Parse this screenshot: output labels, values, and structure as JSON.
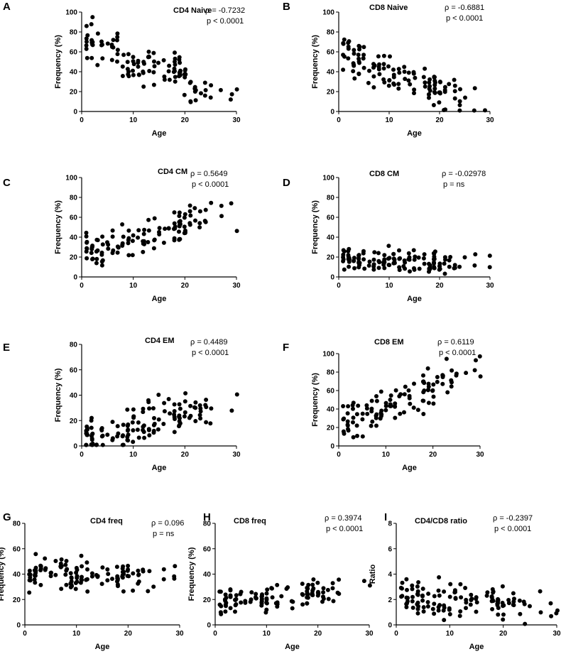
{
  "chart_data": [
    {
      "type": "scatter",
      "panel": "A",
      "title": "CD4 Naive",
      "xlabel": "Age",
      "ylabel": "Frequency (%)",
      "xlim": [
        0,
        30
      ],
      "ylim": [
        0,
        100
      ],
      "xticks": [
        "0",
        "10",
        "20",
        "30"
      ],
      "yticks": [
        "0",
        "20",
        "40",
        "60",
        "80",
        "100"
      ],
      "rho": "ρ = -0.7232",
      "p": "p < 0.0001",
      "trend": {
        "a": 72,
        "b": -2.0,
        "spread": 14
      }
    },
    {
      "type": "scatter",
      "panel": "B",
      "title": "CD8 Naive",
      "xlabel": "Age",
      "ylabel": "Frequency (%)",
      "xlim": [
        0,
        30
      ],
      "ylim": [
        0,
        100
      ],
      "xticks": [
        "0",
        "10",
        "20",
        "30"
      ],
      "yticks": [
        "0",
        "20",
        "40",
        "60",
        "80",
        "100"
      ],
      "rho": "ρ = -0.6881",
      "p": "p < 0.0001",
      "trend": {
        "a": 60,
        "b": -2.0,
        "spread": 14
      }
    },
    {
      "type": "scatter",
      "panel": "C",
      "title": "CD4 CM",
      "xlabel": "Age",
      "ylabel": "Frequency (%)",
      "xlim": [
        0,
        30
      ],
      "ylim": [
        0,
        100
      ],
      "xticks": [
        "0",
        "10",
        "20",
        "30"
      ],
      "yticks": [
        "0",
        "20",
        "40",
        "60",
        "80",
        "100"
      ],
      "rho": "ρ = 0.5649",
      "p": "p < 0.0001",
      "trend": {
        "a": 22,
        "b": 1.5,
        "spread": 12
      }
    },
    {
      "type": "scatter",
      "panel": "D",
      "title": "CD8 CM",
      "xlabel": "Age",
      "ylabel": "Frequency (%)",
      "xlim": [
        0,
        30
      ],
      "ylim": [
        0,
        100
      ],
      "xticks": [
        "0",
        "10",
        "20",
        "30"
      ],
      "yticks": [
        "0",
        "20",
        "40",
        "60",
        "80",
        "100"
      ],
      "rho": "ρ = -0.02978",
      "p": "p = ns",
      "trend": {
        "a": 17,
        "b": -0.1,
        "spread": 8
      }
    },
    {
      "type": "scatter",
      "panel": "E",
      "title": "CD4 EM",
      "xlabel": "Age",
      "ylabel": "Frequency (%)",
      "xlim": [
        0,
        30
      ],
      "ylim": [
        0,
        80
      ],
      "xticks": [
        "0",
        "10",
        "20",
        "30"
      ],
      "yticks": [
        "0",
        "20",
        "40",
        "60",
        "80"
      ],
      "rho": "ρ = 0.4489",
      "p": "p < 0.0001",
      "trend": {
        "a": 6,
        "b": 1.0,
        "spread": 11
      }
    },
    {
      "type": "scatter",
      "panel": "F",
      "title": "CD8 EM",
      "xlabel": "Age",
      "ylabel": "Frequency (%)",
      "xlim": [
        0,
        30
      ],
      "ylim": [
        0,
        100
      ],
      "xticks": [
        "0",
        "10",
        "20",
        "30"
      ],
      "yticks": [
        "0",
        "20",
        "40",
        "60",
        "80",
        "100"
      ],
      "rho": "ρ = 0.6119",
      "p": "p < 0.0001",
      "trend": {
        "a": 20,
        "b": 2.2,
        "spread": 13
      }
    },
    {
      "type": "scatter",
      "panel": "G",
      "title": "CD4 freq",
      "xlabel": "Age",
      "ylabel": "Frequency (%)",
      "xlim": [
        0,
        30
      ],
      "ylim": [
        0,
        80
      ],
      "xticks": [
        "0",
        "10",
        "20",
        "30"
      ],
      "yticks": [
        "0",
        "20",
        "40",
        "60",
        "80"
      ],
      "rho": "ρ = 0.096",
      "p": "p = ns",
      "trend": {
        "a": 40,
        "b": -0.1,
        "spread": 9
      }
    },
    {
      "type": "scatter",
      "panel": "H",
      "title": "CD8 freq",
      "xlabel": "Age",
      "ylabel": "Frequency (%)",
      "xlim": [
        0,
        30
      ],
      "ylim": [
        0,
        80
      ],
      "xticks": [
        "0",
        "10",
        "20",
        "30"
      ],
      "yticks": [
        "0",
        "20",
        "40",
        "60",
        "80"
      ],
      "rho": "ρ = 0.3974",
      "p": "p < 0.0001",
      "trend": {
        "a": 17,
        "b": 0.4,
        "spread": 7
      }
    },
    {
      "type": "scatter",
      "panel": "I",
      "title": "CD4/CD8 ratio",
      "xlabel": "Age",
      "ylabel": "Ratio",
      "xlim": [
        0,
        30
      ],
      "ylim": [
        0,
        8
      ],
      "xticks": [
        "0",
        "10",
        "20",
        "30"
      ],
      "yticks": [
        "0",
        "2",
        "4",
        "6",
        "8"
      ],
      "rho": "ρ = -0.2397",
      "p": "p < 0.0001",
      "trend": {
        "a": 2.3,
        "b": -0.03,
        "spread": 0.9
      }
    }
  ]
}
